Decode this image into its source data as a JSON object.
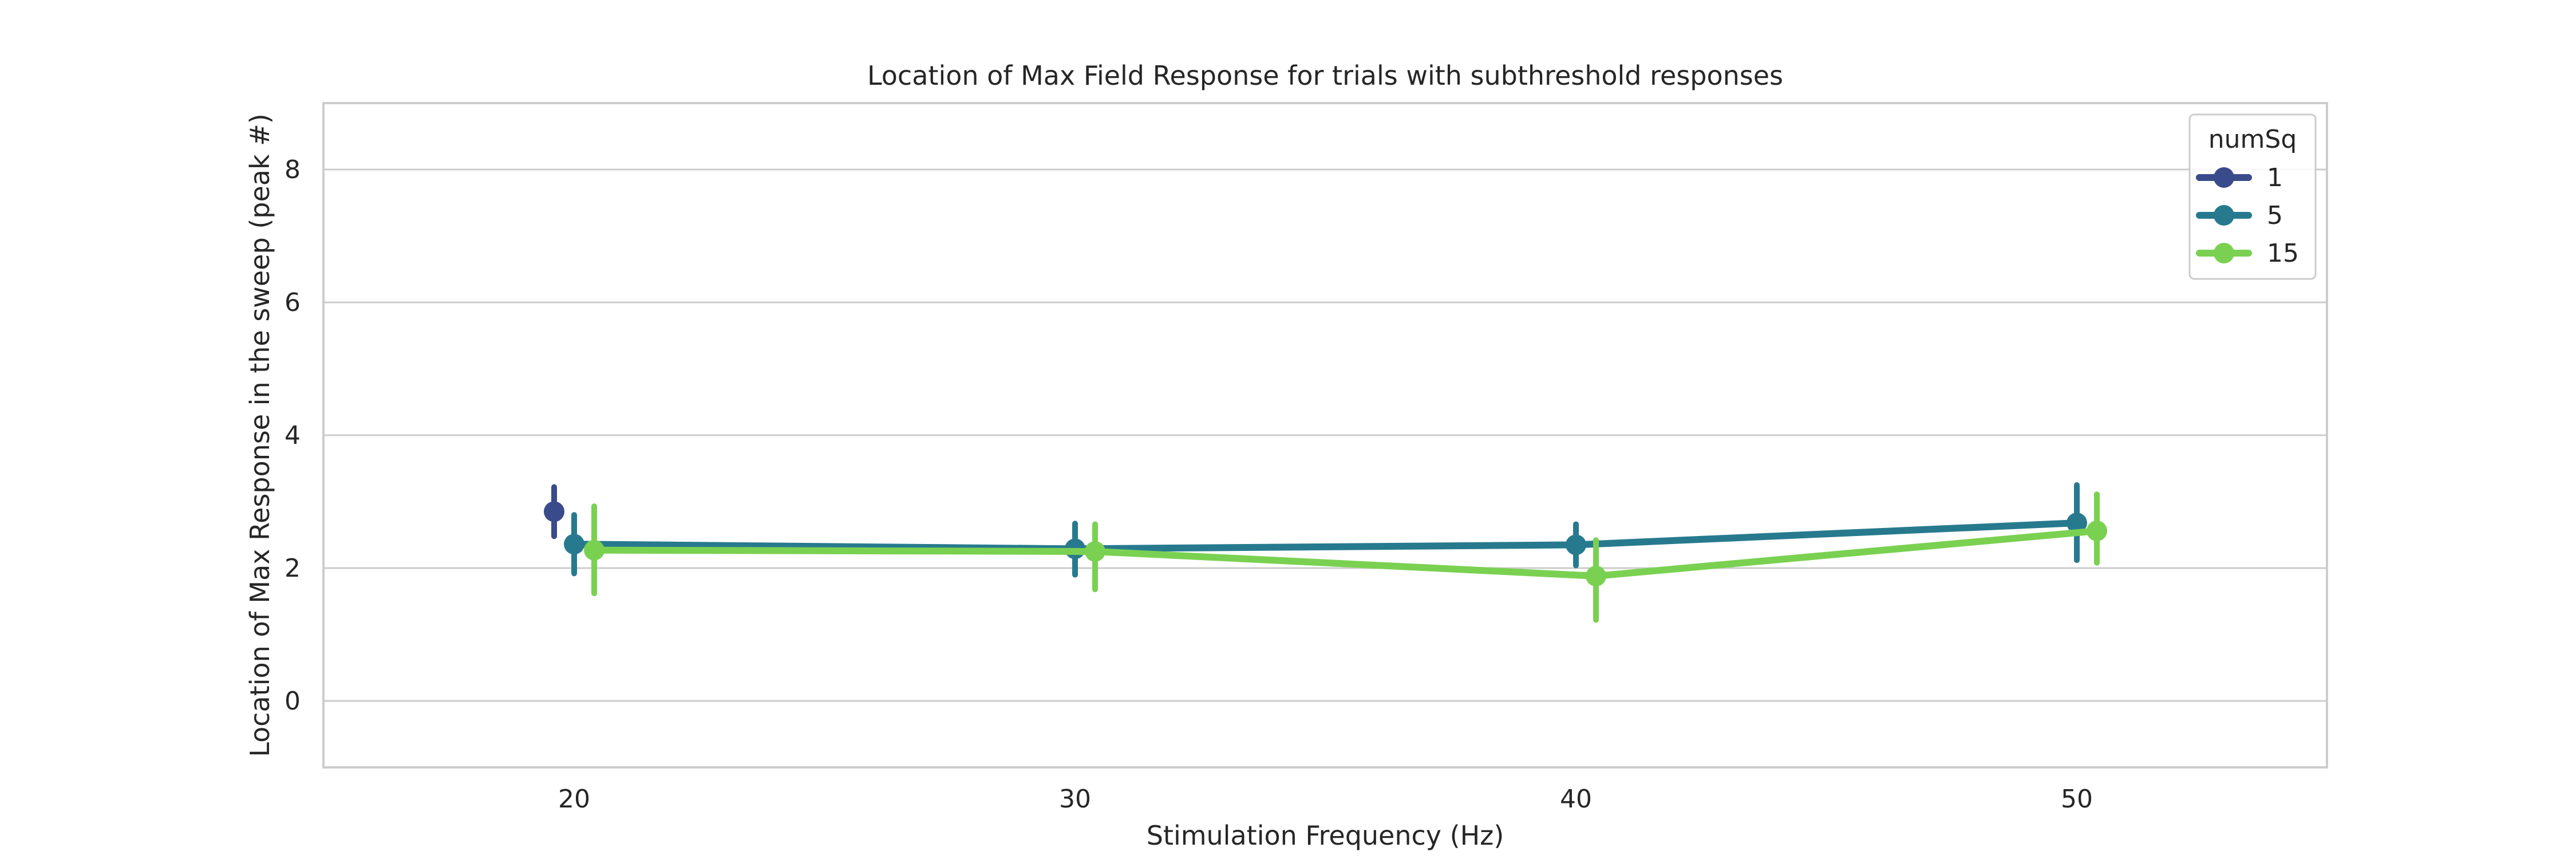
{
  "chart_data": {
    "type": "line",
    "title": "Location of Max Field Response for trials with subthreshold responses",
    "xlabel": "Stimulation Frequency (Hz)",
    "ylabel": "Location of Max Response in the sweep (peak #)",
    "categories": [
      "20",
      "30",
      "40",
      "50"
    ],
    "ylim": [
      -1,
      9
    ],
    "yticks": [
      0,
      2,
      4,
      6,
      8
    ],
    "grid": "y",
    "legend": {
      "title": "numSq",
      "placement": "top-right"
    },
    "series": [
      {
        "name": "1",
        "color": "#3a4b8c",
        "values": [
          2.85,
          null,
          null,
          null
        ],
        "ci_low": [
          2.48,
          null,
          null,
          null
        ],
        "ci_high": [
          3.22,
          null,
          null,
          null
        ]
      },
      {
        "name": "5",
        "color": "#277a8e",
        "values": [
          2.36,
          2.29,
          2.35,
          2.68
        ],
        "ci_low": [
          1.92,
          1.9,
          2.04,
          2.12
        ],
        "ci_high": [
          2.8,
          2.67,
          2.66,
          3.25
        ]
      },
      {
        "name": "15",
        "color": "#7ad151",
        "values": [
          2.27,
          2.25,
          1.88,
          2.56
        ],
        "ci_low": [
          1.62,
          1.68,
          1.22,
          2.08
        ],
        "ci_high": [
          2.93,
          2.66,
          2.42,
          3.11
        ]
      }
    ]
  }
}
